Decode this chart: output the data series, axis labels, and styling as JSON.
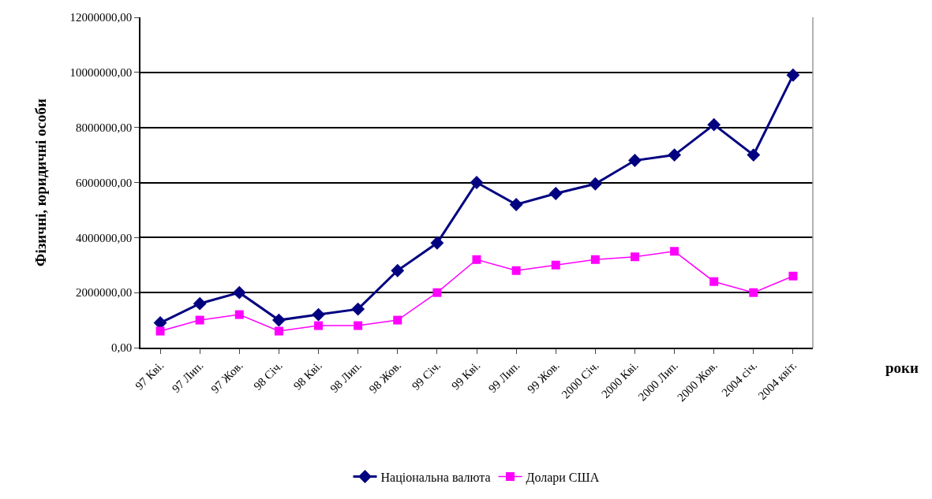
{
  "chart_data": {
    "type": "line",
    "xlabel": "роки",
    "ylabel": "Фізичні, юридичні особи",
    "categories": [
      "97 Кві.",
      "97 Лип.",
      "97 Жов.",
      "98 Січ.",
      "98 Кві.",
      "98 Лип.",
      "98 Жов.",
      "99 Січ.",
      "99 Кві.",
      "99 Лип.",
      "99 Жов.",
      "2000 Січ.",
      "2000 Кві.",
      "2000 Лип.",
      "2000 Жов.",
      "2004 січ.",
      "2004 квіт."
    ],
    "series": [
      {
        "name": "Національна валюта",
        "color": "#000080",
        "marker": "diamond",
        "values": [
          900000,
          1600000,
          2000000,
          1000000,
          1200000,
          1400000,
          2800000,
          3800000,
          6000000,
          5200000,
          5600000,
          5950000,
          6800000,
          7000000,
          8100000,
          7000000,
          9900000
        ]
      },
      {
        "name": "Долари США",
        "color": "#ff00ff",
        "marker": "square",
        "values": [
          600000,
          1000000,
          1200000,
          600000,
          800000,
          800000,
          1000000,
          2000000,
          3200000,
          2800000,
          3000000,
          3200000,
          3300000,
          3500000,
          2400000,
          2000000,
          2600000
        ]
      }
    ],
    "ylim": [
      0,
      12000000
    ],
    "yticks": [
      {
        "value": 0,
        "label": "0,00"
      },
      {
        "value": 2000000,
        "label": "2000000,00"
      },
      {
        "value": 4000000,
        "label": "4000000,00"
      },
      {
        "value": 6000000,
        "label": "6000000,00"
      },
      {
        "value": 8000000,
        "label": "8000000,00"
      },
      {
        "value": 10000000,
        "label": "10000000,00"
      },
      {
        "value": 12000000,
        "label": "12000000,00"
      }
    ],
    "grid": "y",
    "legend": "bottom",
    "line_style": "solid"
  }
}
